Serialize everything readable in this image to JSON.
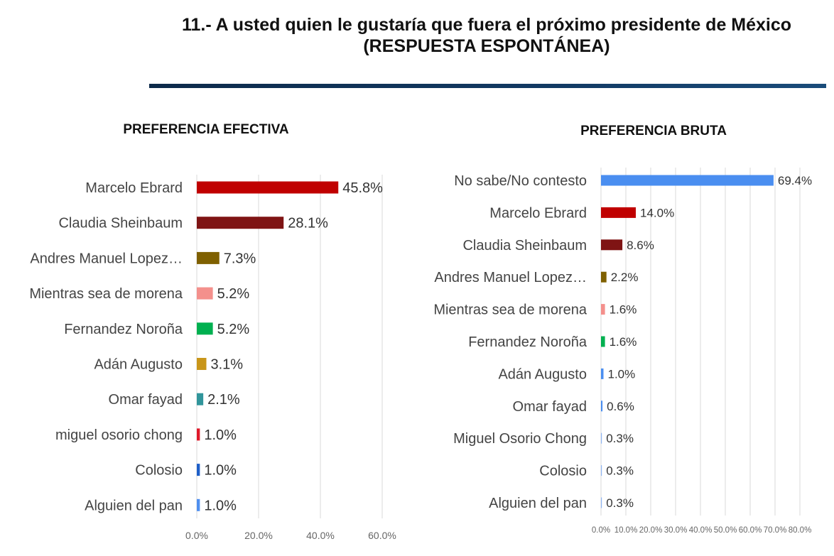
{
  "header": {
    "title_line1": "11.- A usted quien le gustaría que fuera el próximo presidente de México",
    "title_line2": "(RESPUESTA ESPONTÁNEA)"
  },
  "chart_data": [
    {
      "type": "bar",
      "orientation": "horizontal",
      "title": "PREFERENCIA EFECTIVA",
      "categories": [
        "Marcelo Ebrard",
        "Claudia Sheinbaum",
        "Andres Manuel Lopez…",
        "Mientras sea de morena",
        "Fernandez Noroña",
        "Adán Augusto",
        "Omar fayad",
        "miguel osorio chong",
        "Colosio",
        "Alguien del pan"
      ],
      "values": [
        45.8,
        28.1,
        7.3,
        5.2,
        5.2,
        3.1,
        2.1,
        1.0,
        1.0,
        1.0
      ],
      "value_labels": [
        "45.8%",
        "28.1%",
        "7.3%",
        "5.2%",
        "5.2%",
        "3.1%",
        "2.1%",
        "1.0%",
        "1.0%",
        "1.0%"
      ],
      "colors": [
        "#c00000",
        "#7f1414",
        "#7f6000",
        "#f4908c",
        "#00b050",
        "#c9961a",
        "#31959b",
        "#e0192a",
        "#1f5fc8",
        "#4f8fef"
      ],
      "xlim": [
        0,
        60
      ],
      "ticks": [
        0,
        20,
        40,
        60
      ],
      "tick_labels": [
        "0.0%",
        "20.0%",
        "40.0%",
        "60.0%"
      ],
      "grid": true
    },
    {
      "type": "bar",
      "orientation": "horizontal",
      "title": "PREFERENCIA BRUTA",
      "categories": [
        "No sabe/No contesto",
        "Marcelo Ebrard",
        "Claudia Sheinbaum",
        "Andres Manuel Lopez…",
        "Mientras sea de morena",
        "Fernandez Noroña",
        "Adán Augusto",
        "Omar fayad",
        "Miguel Osorio Chong",
        "Colosio",
        "Alguien del pan"
      ],
      "values": [
        69.4,
        14.0,
        8.6,
        2.2,
        1.6,
        1.6,
        1.0,
        0.6,
        0.3,
        0.3,
        0.3
      ],
      "value_labels": [
        "69.4%",
        "14.0%",
        "8.6%",
        "2.2%",
        "1.6%",
        "1.6%",
        "1.0%",
        "0.6%",
        "0.3%",
        "0.3%",
        "0.3%"
      ],
      "colors": [
        "#4a8ef0",
        "#c00000",
        "#7f1414",
        "#7f6000",
        "#f4908c",
        "#00b050",
        "#4a8ef0",
        "#4a8ef0",
        "#8fb4f0",
        "#8fb4f0",
        "#8fb4f0"
      ],
      "xlim": [
        0,
        80
      ],
      "ticks": [
        0,
        10,
        20,
        30,
        40,
        50,
        60,
        70,
        80
      ],
      "tick_labels": [
        "0.0%",
        "10.0%",
        "20.0%",
        "30.0%",
        "40.0%",
        "50.0%",
        "60.0%",
        "70.0%",
        "80.0%"
      ],
      "grid": true
    }
  ]
}
